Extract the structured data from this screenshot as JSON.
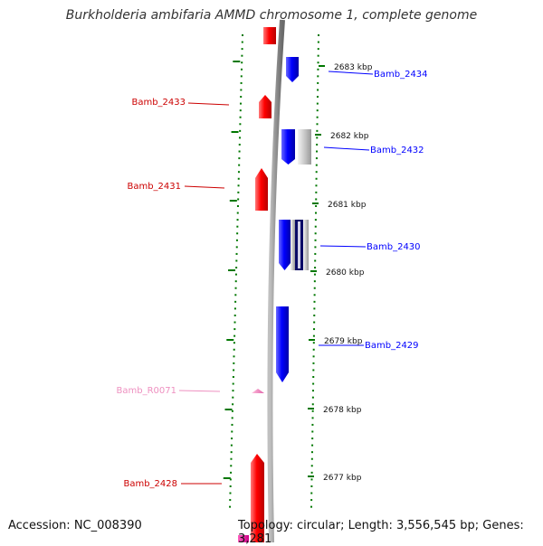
{
  "title": "Burkholderia ambifaria AMMD chromosome 1, complete genome",
  "footer": {
    "accession": "Accession: NC_008390",
    "summary": "Topology: circular; Length: 3,556,545 bp; Genes: 3,281"
  },
  "colors": {
    "strand_forward": "#ff0000",
    "strand_reverse": "#0000ff",
    "rna": "#ee90c0",
    "ticks": "#007700",
    "backbone": "#888888"
  },
  "kbp_labels": [
    "2683 kbp",
    "2682 kbp",
    "2681 kbp",
    "2680 kbp",
    "2679 kbp",
    "2678 kbp",
    "2677 kbp"
  ],
  "genes": [
    {
      "label": "Bamb_2434",
      "strand": "reverse"
    },
    {
      "label": "Bamb_2433",
      "strand": "forward"
    },
    {
      "label": "Bamb_2432",
      "strand": "reverse"
    },
    {
      "label": "Bamb_2431",
      "strand": "forward"
    },
    {
      "label": "Bamb_2430",
      "strand": "reverse"
    },
    {
      "label": "Bamb_2429",
      "strand": "reverse"
    },
    {
      "label": "Bamb_R0071",
      "strand": "forward"
    },
    {
      "label": "Bamb_2428",
      "strand": "forward"
    }
  ]
}
